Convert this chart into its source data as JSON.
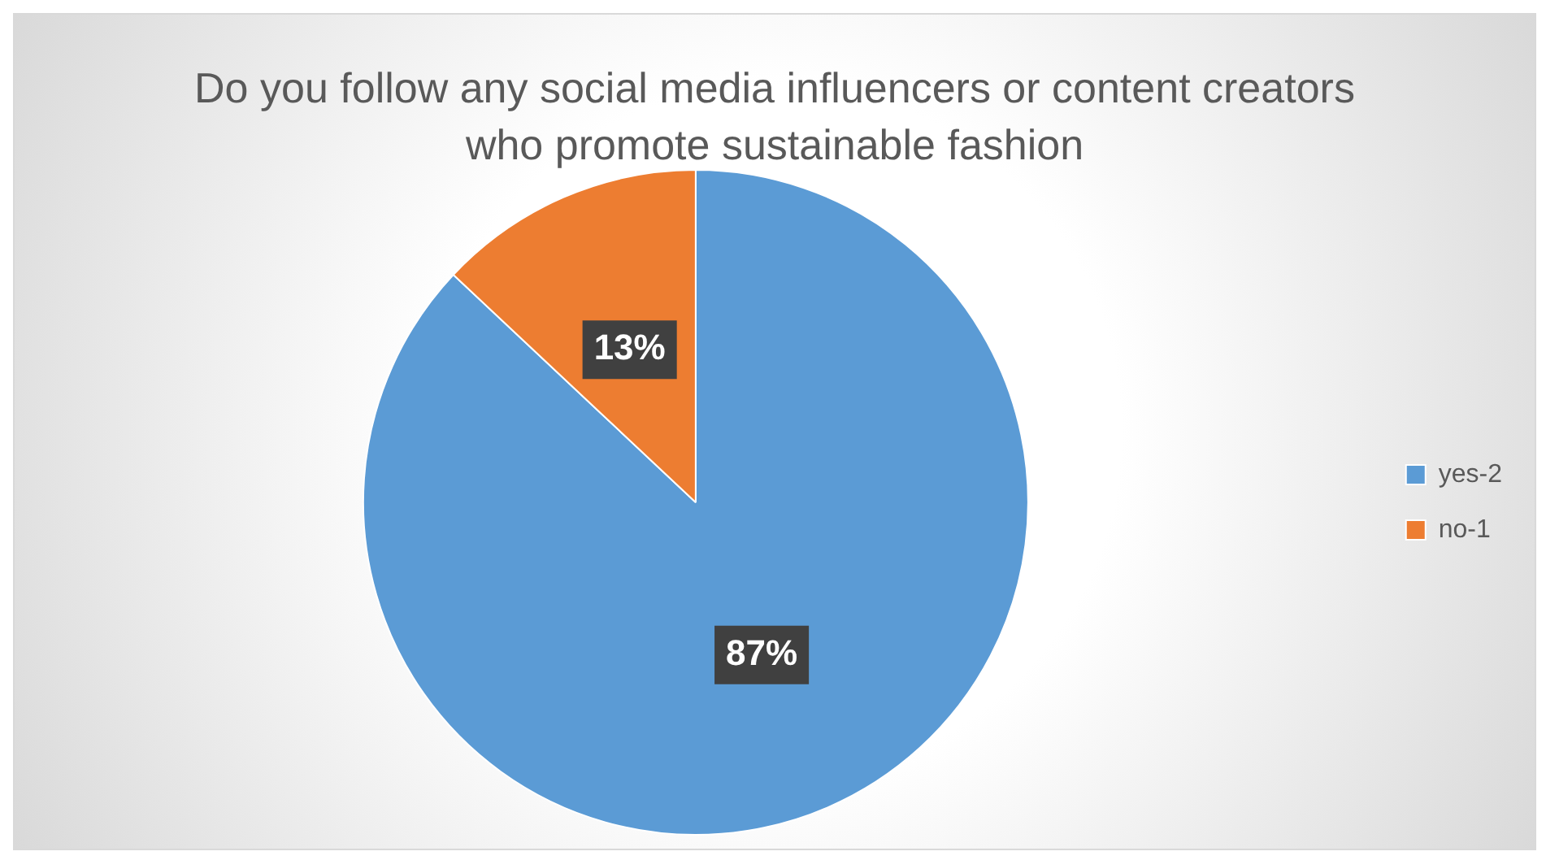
{
  "chart_data": {
    "type": "pie",
    "title": "Do you follow any social media influencers or content creators who promote sustainable fashion",
    "categories": [
      "yes-2",
      "no-1"
    ],
    "values": [
      87,
      13
    ],
    "colors": [
      "#5b9bd5",
      "#ed7d31"
    ],
    "value_labels": [
      "87%",
      "13%"
    ],
    "legend": "right"
  }
}
